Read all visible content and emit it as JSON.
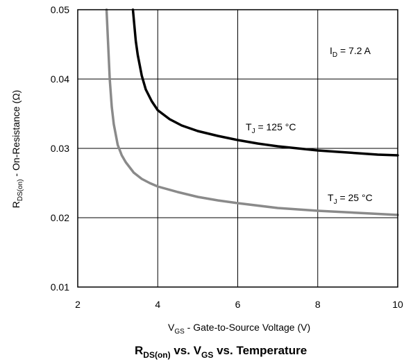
{
  "chart_data": {
    "type": "line",
    "title": {
      "main": "R",
      "main_sub": "DS(on)",
      "mid1": " vs. V",
      "mid_sub": "GS",
      "tail": " vs. Temperature"
    },
    "xlabel": {
      "main": "V",
      "sub": "GS",
      "rest": " - Gate-to-Source Voltage (V)"
    },
    "ylabel": {
      "main": "R",
      "sub": "DS(on)",
      "rest": " - On-Resistance (Ω)"
    },
    "xlim": [
      2,
      10
    ],
    "ylim": [
      0.01,
      0.05
    ],
    "x_ticks": [
      2,
      4,
      6,
      8,
      10
    ],
    "x_tick_labels": [
      "2",
      "4",
      "6",
      "8",
      "10"
    ],
    "y_ticks": [
      0.01,
      0.02,
      0.03,
      0.04,
      0.05
    ],
    "y_tick_labels": [
      "0.01",
      "0.02",
      "0.03",
      "0.04",
      "0.05"
    ],
    "grid": true,
    "annotation": {
      "main": "I",
      "sub": "D",
      "rest": " = 7.2 A"
    },
    "series": [
      {
        "label_main": "T",
        "label_sub": "J",
        "label_rest": " = 125 °C",
        "color": "#000000",
        "x": [
          3.38,
          3.45,
          3.5,
          3.6,
          3.7,
          3.85,
          4.0,
          4.3,
          4.6,
          5.0,
          5.5,
          6.0,
          6.5,
          7.0,
          7.5,
          8.0,
          8.5,
          9.0,
          9.5,
          10.0
        ],
        "y": [
          0.05,
          0.0455,
          0.0435,
          0.0405,
          0.0385,
          0.0368,
          0.0355,
          0.0342,
          0.0333,
          0.0325,
          0.0318,
          0.0312,
          0.0307,
          0.0303,
          0.03,
          0.0297,
          0.0295,
          0.0293,
          0.0291,
          0.029
        ]
      },
      {
        "label_main": "T",
        "label_sub": "J",
        "label_rest": " = 25 °C",
        "color": "#8a8a8a",
        "x": [
          2.72,
          2.76,
          2.8,
          2.85,
          2.9,
          3.0,
          3.1,
          3.2,
          3.4,
          3.6,
          3.8,
          4.0,
          4.5,
          5.0,
          5.5,
          6.0,
          7.0,
          8.0,
          9.0,
          10.0
        ],
        "y": [
          0.05,
          0.045,
          0.04,
          0.036,
          0.0335,
          0.0305,
          0.029,
          0.028,
          0.0265,
          0.0256,
          0.025,
          0.0245,
          0.0237,
          0.023,
          0.0225,
          0.0221,
          0.0214,
          0.021,
          0.0207,
          0.0204
        ]
      }
    ]
  }
}
